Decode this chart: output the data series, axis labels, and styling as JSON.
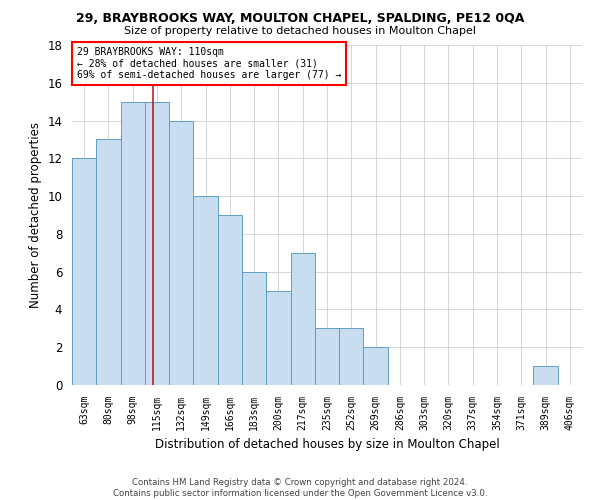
{
  "title1": "29, BRAYBROOKS WAY, MOULTON CHAPEL, SPALDING, PE12 0QA",
  "title2": "Size of property relative to detached houses in Moulton Chapel",
  "xlabel": "Distribution of detached houses by size in Moulton Chapel",
  "ylabel": "Number of detached properties",
  "categories": [
    "63sqm",
    "80sqm",
    "98sqm",
    "115sqm",
    "132sqm",
    "149sqm",
    "166sqm",
    "183sqm",
    "200sqm",
    "217sqm",
    "235sqm",
    "252sqm",
    "269sqm",
    "286sqm",
    "303sqm",
    "320sqm",
    "337sqm",
    "354sqm",
    "371sqm",
    "389sqm",
    "406sqm"
  ],
  "values": [
    12,
    13,
    15,
    15,
    14,
    10,
    9,
    6,
    5,
    7,
    3,
    3,
    2,
    0,
    0,
    0,
    0,
    0,
    0,
    1,
    0
  ],
  "bar_color": "#c9ddf0",
  "bar_edge_color": "#5f9ec0",
  "grid_color": "#d0d0d0",
  "background_color": "#ffffff",
  "property_label": "29 BRAYBROOKS WAY: 110sqm",
  "annotation_line1": "← 28% of detached houses are smaller (31)",
  "annotation_line2": "69% of semi-detached houses are larger (77) →",
  "vline_color": "#bb2222",
  "vline_position": 2.82,
  "footer1": "Contains HM Land Registry data © Crown copyright and database right 2024.",
  "footer2": "Contains public sector information licensed under the Open Government Licence v3.0.",
  "ylim": [
    0,
    18
  ],
  "yticks": [
    0,
    2,
    4,
    6,
    8,
    10,
    12,
    14,
    16,
    18
  ]
}
